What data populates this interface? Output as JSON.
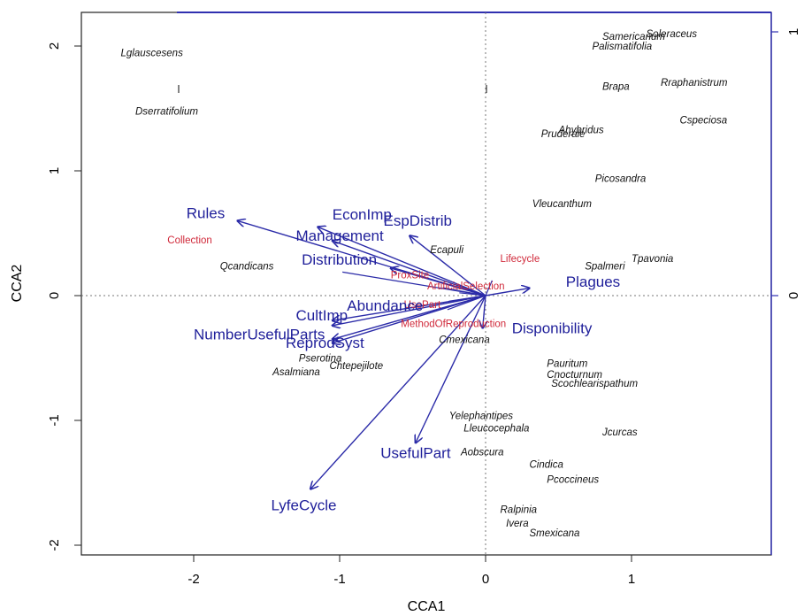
{
  "chart_data": {
    "type": "scatter",
    "xlabel": "CCA1",
    "ylabel": "CCA2",
    "xlim": [
      -2.7,
      2.0
    ],
    "ylim": [
      -2.1,
      2.25
    ],
    "x_ticks": [
      "-2",
      "-1",
      "0",
      "1"
    ],
    "y_ticks": [
      "-2",
      "-1",
      "0",
      "1",
      "2"
    ],
    "right_ticks": [
      "1",
      "0"
    ],
    "colors": {
      "arrows": "#2b2ba8",
      "env_labels": "#1f1f9a",
      "var_labels": "#d0293a",
      "species": "#111111"
    },
    "species": [
      {
        "name": "Lglauscesens",
        "x": -2.5,
        "y": 1.92
      },
      {
        "name": "Dserratifolium",
        "x": -2.4,
        "y": 1.45
      },
      {
        "name": "Samericanum",
        "x": 0.8,
        "y": 2.05
      },
      {
        "name": "Soleraceus",
        "x": 1.1,
        "y": 2.07
      },
      {
        "name": "Palismatifolia",
        "x": 0.73,
        "y": 1.97
      },
      {
        "name": "Brapa",
        "x": 0.8,
        "y": 1.65
      },
      {
        "name": "Rraphanistrum",
        "x": 1.2,
        "y": 1.68
      },
      {
        "name": "Cspeciosa",
        "x": 1.33,
        "y": 1.38
      },
      {
        "name": "Ahybridus",
        "x": 0.5,
        "y": 1.3
      },
      {
        "name": "Pruderale",
        "x": 0.38,
        "y": 1.27
      },
      {
        "name": "Picosandra",
        "x": 0.75,
        "y": 0.91
      },
      {
        "name": "Vleucanthum",
        "x": 0.32,
        "y": 0.71
      },
      {
        "name": "Ecapuli",
        "x": -0.38,
        "y": 0.34
      },
      {
        "name": "Qcandicans",
        "x": -1.82,
        "y": 0.21
      },
      {
        "name": "Spalmeri",
        "x": 0.68,
        "y": 0.21
      },
      {
        "name": "Tpavonia",
        "x": 1.0,
        "y": 0.27
      },
      {
        "name": "Cmexicana",
        "x": -0.32,
        "y": -0.38
      },
      {
        "name": "Pserotina",
        "x": -1.28,
        "y": -0.53
      },
      {
        "name": "Chtepejilote",
        "x": -1.07,
        "y": -0.59
      },
      {
        "name": "Asalmiana",
        "x": -1.46,
        "y": -0.64
      },
      {
        "name": "Pauritum",
        "x": 0.42,
        "y": -0.57
      },
      {
        "name": "Cnocturnum",
        "x": 0.42,
        "y": -0.66
      },
      {
        "name": "Scochlearispathum",
        "x": 0.45,
        "y": -0.73
      },
      {
        "name": "Yelephantipes",
        "x": -0.25,
        "y": -0.99
      },
      {
        "name": "Lleucocephala",
        "x": -0.15,
        "y": -1.09
      },
      {
        "name": "Jcurcas",
        "x": 0.8,
        "y": -1.12
      },
      {
        "name": "Aobscura",
        "x": -0.17,
        "y": -1.28
      },
      {
        "name": "Cindica",
        "x": 0.3,
        "y": -1.38
      },
      {
        "name": "Pcoccineus",
        "x": 0.42,
        "y": -1.5
      },
      {
        "name": "Ralpinia",
        "x": 0.1,
        "y": -1.74
      },
      {
        "name": "Ivera",
        "x": 0.14,
        "y": -1.85
      },
      {
        "name": "Smexicana",
        "x": 0.3,
        "y": -1.93
      }
    ],
    "env_arrows": [
      {
        "name": "Rules",
        "x": -1.7,
        "y": 0.6,
        "lx": -2.05,
        "ly": 0.62
      },
      {
        "name": "EconImp",
        "x": -1.15,
        "y": 0.55,
        "lx": -1.05,
        "ly": 0.61
      },
      {
        "name": "Management",
        "x": -1.05,
        "y": 0.44,
        "lx": -1.3,
        "ly": 0.44
      },
      {
        "name": "EspDistrib",
        "x": -0.52,
        "y": 0.48,
        "lx": -0.7,
        "ly": 0.56
      },
      {
        "name": "Distribution",
        "x": -0.65,
        "y": 0.22,
        "lx": -1.26,
        "ly": 0.25
      },
      {
        "name": "Plagues",
        "x": 0.3,
        "y": 0.06,
        "lx": 0.55,
        "ly": 0.07
      },
      {
        "name": "Abundance",
        "x": -1.05,
        "y": -0.2,
        "lx": -0.95,
        "ly": -0.12
      },
      {
        "name": "CultImp",
        "x": -1.05,
        "y": -0.24,
        "lx": -1.3,
        "ly": -0.2
      },
      {
        "name": "NumberUsefulParts",
        "x": -1.05,
        "y": -0.35,
        "lx": -2.0,
        "ly": -0.35
      },
      {
        "name": "ReprodSyst",
        "x": -1.05,
        "y": -0.38,
        "lx": -1.37,
        "ly": -0.42
      },
      {
        "name": "Disponibility",
        "x": -0.02,
        "y": -0.26,
        "lx": 0.18,
        "ly": -0.3
      },
      {
        "name": "UsefulPart",
        "x": -0.48,
        "y": -1.18,
        "lx": -0.72,
        "ly": -1.3
      },
      {
        "name": "LyfeCycle",
        "x": -1.2,
        "y": -1.55,
        "lx": -1.47,
        "ly": -1.72
      }
    ],
    "var_labels": [
      {
        "name": "Collection",
        "x": -2.18,
        "y": 0.42
      },
      {
        "name": "Lifecycle",
        "x": 0.1,
        "y": 0.27
      },
      {
        "name": "ProxSite",
        "x": -0.65,
        "y": 0.14
      },
      {
        "name": "ArtificialSelection",
        "x": -0.4,
        "y": 0.05
      },
      {
        "name": "UsePart",
        "x": -0.56,
        "y": -0.1
      },
      {
        "name": "MethodOfReproduction",
        "x": -0.58,
        "y": -0.25
      }
    ]
  }
}
